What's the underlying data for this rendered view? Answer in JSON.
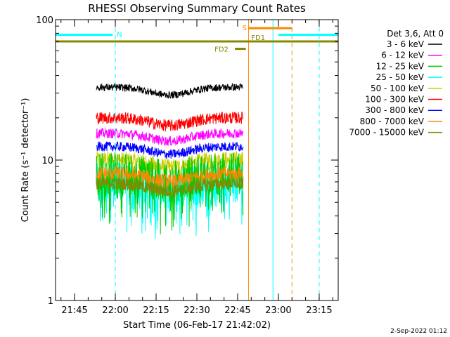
{
  "chart_data": {
    "type": "line",
    "title": "RHESSI Observing Summary Count Rates",
    "xlabel": "Start Time (06-Feb-17 21:42:02)",
    "ylabel": "Count Rate (s⁻¹ detector⁻¹)",
    "yscale": "log",
    "ylim": [
      1,
      100
    ],
    "y_ticks": [
      {
        "value": 1,
        "label": "1"
      },
      {
        "value": 10,
        "label": "10"
      },
      {
        "value": 100,
        "label": "100"
      }
    ],
    "xlim": [
      "21:38",
      "23:22"
    ],
    "x_ticks": [
      "21:45",
      "22:00",
      "22:15",
      "22:30",
      "22:45",
      "23:00",
      "23:15"
    ],
    "data_start": "21:53",
    "data_end": "22:47",
    "legend_header": "Det 3,6, Att 0",
    "legend_position": "right",
    "series": [
      {
        "name": "3 - 6 keV",
        "color": "#000000",
        "level": 33,
        "spread": 0.06
      },
      {
        "name": "6 - 12 keV",
        "color": "#ff00ff",
        "level": 15.5,
        "spread": 0.08
      },
      {
        "name": "12 - 25 keV",
        "color": "#00cc00",
        "level": 8,
        "spread": 0.35
      },
      {
        "name": "25 - 50 keV",
        "color": "#00ffff",
        "level": 7,
        "spread": 0.35
      },
      {
        "name": "50 - 100 keV",
        "color": "#cccc00",
        "level": 10,
        "spread": 0.15
      },
      {
        "name": "100 - 300 keV",
        "color": "#ff0000",
        "level": 20,
        "spread": 0.1
      },
      {
        "name": "300 - 800 keV",
        "color": "#0000ff",
        "level": 12.5,
        "spread": 0.08
      },
      {
        "name": "800 - 7000 keV",
        "color": "#ff8800",
        "level": 8,
        "spread": 0.12
      },
      {
        "name": "7000 - 15000 keV",
        "color": "#888800",
        "level": 6.8,
        "spread": 0.1
      }
    ],
    "intervals": [
      {
        "label": "N",
        "color": "#00ffff",
        "start": "21:38",
        "end": "21:59",
        "level": 78
      },
      {
        "label": "",
        "color": "#00ffff",
        "start": "23:00",
        "end": "23:22",
        "level": 78
      },
      {
        "label": "S",
        "color": "#ff8800",
        "start": "22:49",
        "end": "23:05",
        "level": 87
      },
      {
        "label": "FD1",
        "color": "#888800",
        "start": "21:38",
        "end": "23:22",
        "level": 70
      },
      {
        "label": "FD2",
        "color": "#888800",
        "start": "22:44",
        "end": "22:48",
        "level": 62
      }
    ],
    "vlines": [
      {
        "time": "21:38",
        "color": "#00ffff",
        "style": "solid"
      },
      {
        "time": "22:00",
        "color": "#00ffff",
        "style": "dashed"
      },
      {
        "time": "22:49",
        "color": "#ff8800",
        "style": "solid"
      },
      {
        "time": "22:58",
        "color": "#00ffff",
        "style": "solid"
      },
      {
        "time": "23:05",
        "color": "#ff8800",
        "style": "dashed"
      },
      {
        "time": "23:15",
        "color": "#00ffff",
        "style": "dashed"
      }
    ],
    "footer": "2-Sep-2022 01:12"
  }
}
